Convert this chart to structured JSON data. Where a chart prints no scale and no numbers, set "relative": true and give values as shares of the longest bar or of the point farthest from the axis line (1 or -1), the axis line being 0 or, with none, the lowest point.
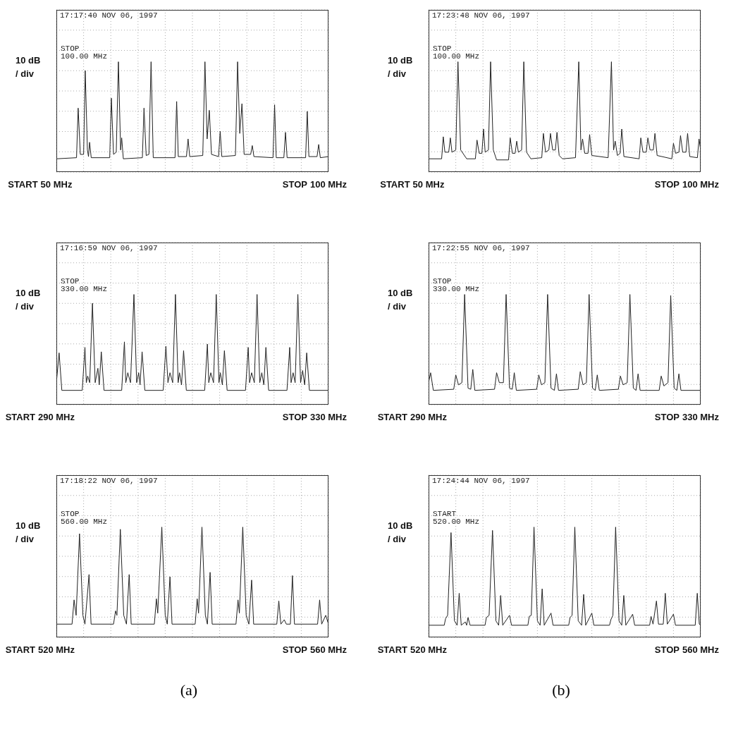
{
  "chart_data": [
    {
      "type": "line",
      "ylabel": "10 dB / div",
      "annotations": [
        "17:17:40 NOV 06, 1997",
        "STOP\n100.00 MHz",
        "START",
        "STOP"
      ],
      "relative": true,
      "grid": true,
      "color": "#222222",
      "xlim": [
        50,
        100
      ],
      "xticks": [
        {
          "value": 50,
          "label": "50 MHz"
        },
        {
          "value": 55,
          "label": null
        },
        {
          "value": 60,
          "label": null
        },
        {
          "value": 65,
          "label": null
        },
        {
          "value": 70,
          "label": null
        },
        {
          "value": 75,
          "label": null
        },
        {
          "value": 80,
          "label": null
        },
        {
          "value": 85,
          "label": null
        },
        {
          "value": 90,
          "label": null
        },
        {
          "value": 95,
          "label": null
        },
        {
          "value": 100,
          "label": "100 MHz"
        }
      ],
      "x": [
        50,
        53.7,
        54.0,
        54.4,
        55.0,
        55.3,
        55.7,
        55.9,
        56.1,
        56.4,
        59.8,
        60.1,
        60.5,
        61.0,
        61.4,
        61.8,
        62.0,
        62.3,
        65.8,
        66.1,
        66.5,
        67.0,
        67.4,
        67.8,
        71.8,
        72.1,
        72.4,
        73.9,
        74.2,
        74.5,
        76.9,
        77.3,
        77.7,
        78.1,
        78.5,
        79.8,
        80.1,
        80.4,
        82.9,
        83.3,
        83.7,
        84.1,
        84.5,
        85.7,
        86.0,
        86.3,
        89.8,
        90.1,
        90.4,
        91.8,
        92.1,
        92.4,
        95.8,
        96.1,
        96.4,
        97.9,
        98.2,
        98.5,
        100
      ],
      "values": [
        0.12,
        0.13,
        0.58,
        0.16,
        0.16,
        0.92,
        0.2,
        0.14,
        0.27,
        0.13,
        0.13,
        0.67,
        0.16,
        0.18,
        1.0,
        0.2,
        0.31,
        0.12,
        0.13,
        0.58,
        0.15,
        0.16,
        1.0,
        0.13,
        0.13,
        0.64,
        0.14,
        0.14,
        0.3,
        0.14,
        0.15,
        1.0,
        0.3,
        0.56,
        0.16,
        0.14,
        0.37,
        0.14,
        0.15,
        1.0,
        0.35,
        0.62,
        0.16,
        0.16,
        0.24,
        0.14,
        0.13,
        0.61,
        0.13,
        0.13,
        0.36,
        0.13,
        0.13,
        0.55,
        0.14,
        0.14,
        0.25,
        0.13,
        0.14
      ]
    },
    {
      "type": "line",
      "ylabel": "10 dB / div",
      "annotations": [
        "17:23:48 NOV 06, 1997",
        "STOP\n100.00 MHz",
        "START",
        "STOP"
      ],
      "relative": true,
      "grid": true,
      "color": "#222222",
      "xlim": [
        50,
        100
      ],
      "xticks": [
        {
          "value": 50,
          "label": "50 MHz"
        },
        {
          "value": 55,
          "label": null
        },
        {
          "value": 60,
          "label": null
        },
        {
          "value": 65,
          "label": null
        },
        {
          "value": 70,
          "label": null
        },
        {
          "value": 75,
          "label": null
        },
        {
          "value": 80,
          "label": null
        },
        {
          "value": 85,
          "label": null
        },
        {
          "value": 90,
          "label": null
        },
        {
          "value": 95,
          "label": null
        },
        {
          "value": 100,
          "label": "100 MHz"
        }
      ],
      "x": [
        50,
        52.4,
        52.7,
        53.0,
        53.7,
        54.0,
        54.3,
        55.0,
        55.4,
        55.9,
        57.0,
        58.6,
        58.9,
        59.3,
        59.8,
        60.1,
        60.4,
        61.0,
        61.4,
        61.9,
        62.5,
        64.7,
        65.0,
        65.4,
        65.9,
        66.2,
        66.5,
        67.1,
        67.5,
        68.0,
        68.8,
        70.8,
        71.1,
        71.5,
        72.1,
        72.4,
        72.8,
        73.3,
        73.6,
        74.0,
        74.6,
        77.0,
        77.6,
        78.0,
        78.3,
        78.7,
        79.3,
        79.6,
        80.0,
        83.0,
        83.6,
        84.0,
        84.3,
        84.7,
        85.2,
        85.5,
        85.9,
        88.7,
        89.0,
        89.4,
        90.0,
        90.3,
        90.7,
        91.3,
        91.6,
        92.0,
        94.7,
        95.0,
        95.4,
        96.0,
        96.3,
        96.7,
        97.3,
        97.6,
        98.0,
        99.4,
        99.7,
        100
      ],
      "values": [
        0.12,
        0.12,
        0.32,
        0.18,
        0.18,
        0.31,
        0.18,
        0.2,
        1.0,
        0.2,
        0.12,
        0.12,
        0.29,
        0.17,
        0.17,
        0.39,
        0.18,
        0.2,
        1.0,
        0.2,
        0.11,
        0.11,
        0.31,
        0.17,
        0.17,
        0.28,
        0.18,
        0.2,
        1.0,
        0.18,
        0.12,
        0.13,
        0.35,
        0.18,
        0.2,
        0.35,
        0.2,
        0.2,
        0.36,
        0.15,
        0.12,
        0.13,
        1.0,
        0.2,
        0.3,
        0.17,
        0.17,
        0.34,
        0.15,
        0.13,
        1.0,
        0.2,
        0.28,
        0.15,
        0.17,
        0.39,
        0.14,
        0.12,
        0.31,
        0.18,
        0.18,
        0.31,
        0.2,
        0.2,
        0.35,
        0.15,
        0.12,
        0.26,
        0.17,
        0.18,
        0.33,
        0.18,
        0.18,
        0.35,
        0.14,
        0.13,
        0.3,
        0.2
      ]
    },
    {
      "type": "line",
      "ylabel": "10 dB / div",
      "annotations": [
        "17:16:59 NOV 06, 1997",
        "STOP\n330.00 MHz",
        "START",
        "STOP"
      ],
      "relative": true,
      "grid": true,
      "color": "#222222",
      "xlim": [
        290,
        330
      ],
      "xticks": [
        {
          "value": 290,
          "label": "290 MHz"
        },
        {
          "value": 294,
          "label": null
        },
        {
          "value": 298,
          "label": null
        },
        {
          "value": 302,
          "label": null
        },
        {
          "value": 306,
          "label": null
        },
        {
          "value": 310,
          "label": null
        },
        {
          "value": 314,
          "label": null
        },
        {
          "value": 318,
          "label": null
        },
        {
          "value": 322,
          "label": null
        },
        {
          "value": 326,
          "label": null
        },
        {
          "value": 330,
          "label": "330 MHz"
        }
      ],
      "x": [
        290,
        290.4,
        290.8,
        293.8,
        294.2,
        294.4,
        294.6,
        294.9,
        295.3,
        295.7,
        296.1,
        296.3,
        296.6,
        297.0,
        299.6,
        300.0,
        300.2,
        300.5,
        300.9,
        301.4,
        301.8,
        302.1,
        302.3,
        302.6,
        303.0,
        305.7,
        306.1,
        306.4,
        306.7,
        307.1,
        307.5,
        307.9,
        308.1,
        308.4,
        308.7,
        309.1,
        311.8,
        312.2,
        312.4,
        312.7,
        313.1,
        313.5,
        313.9,
        314.1,
        314.4,
        314.7,
        315.1,
        317.8,
        318.2,
        318.4,
        318.7,
        319.1,
        319.5,
        319.9,
        320.2,
        320.5,
        320.8,
        321.2,
        323.9,
        324.3,
        324.5,
        324.8,
        325.1,
        325.5,
        325.9,
        326.2,
        326.5,
        326.8,
        327.2,
        330
      ],
      "values": [
        0.2,
        0.47,
        0.13,
        0.13,
        0.52,
        0.2,
        0.26,
        0.2,
        0.92,
        0.2,
        0.33,
        0.18,
        0.48,
        0.13,
        0.13,
        0.57,
        0.2,
        0.29,
        0.2,
        1.0,
        0.2,
        0.29,
        0.18,
        0.48,
        0.13,
        0.13,
        0.53,
        0.2,
        0.29,
        0.2,
        1.0,
        0.2,
        0.29,
        0.18,
        0.49,
        0.13,
        0.13,
        0.55,
        0.2,
        0.29,
        0.2,
        1.0,
        0.2,
        0.29,
        0.18,
        0.49,
        0.13,
        0.13,
        0.52,
        0.2,
        0.29,
        0.2,
        1.0,
        0.2,
        0.29,
        0.18,
        0.52,
        0.13,
        0.13,
        0.52,
        0.2,
        0.29,
        0.2,
        1.0,
        0.2,
        0.31,
        0.18,
        0.47,
        0.13,
        0.13
      ]
    },
    {
      "type": "line",
      "ylabel": "10 dB / div",
      "annotations": [
        "17:22:55 NOV 06, 1997",
        "STOP\n330.00 MHz",
        "START",
        "STOP"
      ],
      "relative": true,
      "grid": true,
      "color": "#222222",
      "xlim": [
        290,
        330
      ],
      "xticks": [
        {
          "value": 290,
          "label": "290 MHz"
        },
        {
          "value": 294,
          "label": null
        },
        {
          "value": 298,
          "label": null
        },
        {
          "value": 302,
          "label": null
        },
        {
          "value": 306,
          "label": null
        },
        {
          "value": 310,
          "label": null
        },
        {
          "value": 314,
          "label": null
        },
        {
          "value": 318,
          "label": null
        },
        {
          "value": 322,
          "label": null
        },
        {
          "value": 326,
          "label": null
        },
        {
          "value": 330,
          "label": "330 MHz"
        }
      ],
      "x": [
        290,
        290.3,
        290.7,
        293.7,
        294.0,
        294.4,
        294.9,
        295.3,
        295.8,
        296.2,
        296.5,
        296.8,
        299.7,
        300.0,
        300.4,
        301.0,
        301.4,
        301.9,
        302.3,
        302.6,
        302.9,
        305.9,
        306.2,
        306.6,
        307.1,
        307.5,
        308.0,
        308.5,
        308.8,
        309.1,
        312.0,
        312.3,
        312.7,
        313.2,
        313.6,
        314.1,
        314.5,
        314.8,
        315.1,
        317.9,
        318.2,
        318.6,
        319.2,
        319.6,
        320.1,
        320.5,
        320.8,
        321.1,
        323.9,
        324.2,
        324.6,
        325.2,
        325.6,
        326.1,
        326.5,
        326.8,
        327.1,
        330
      ],
      "values": [
        0.2,
        0.29,
        0.13,
        0.14,
        0.27,
        0.18,
        0.2,
        1.0,
        0.15,
        0.14,
        0.32,
        0.13,
        0.14,
        0.29,
        0.2,
        0.2,
        1.0,
        0.15,
        0.14,
        0.29,
        0.13,
        0.14,
        0.27,
        0.18,
        0.2,
        1.0,
        0.15,
        0.13,
        0.28,
        0.13,
        0.14,
        0.3,
        0.18,
        0.2,
        1.0,
        0.15,
        0.13,
        0.27,
        0.13,
        0.14,
        0.26,
        0.18,
        0.2,
        1.0,
        0.15,
        0.13,
        0.28,
        0.13,
        0.13,
        0.26,
        0.17,
        0.2,
        0.99,
        0.15,
        0.13,
        0.28,
        0.13,
        0.13
      ]
    },
    {
      "type": "line",
      "ylabel": "10 dB / div",
      "annotations": [
        "17:18:22 NOV 06, 1997",
        "STOP\n560.00 MHz",
        "START",
        "STOP",
        "(a)"
      ],
      "relative": true,
      "grid": true,
      "color": "#222222",
      "xlim": [
        520,
        560
      ],
      "xticks": [
        {
          "value": 520,
          "label": "520 MHz"
        },
        {
          "value": 524,
          "label": null
        },
        {
          "value": 528,
          "label": null
        },
        {
          "value": 532,
          "label": null
        },
        {
          "value": 536,
          "label": null
        },
        {
          "value": 540,
          "label": null
        },
        {
          "value": 544,
          "label": null
        },
        {
          "value": 548,
          "label": null
        },
        {
          "value": 552,
          "label": null
        },
        {
          "value": 556,
          "label": null
        },
        {
          "value": 560,
          "label": "560 MHz"
        }
      ],
      "x": [
        520,
        522.3,
        522.6,
        522.9,
        523.4,
        523.9,
        524.2,
        524.8,
        525.1,
        528.4,
        528.7,
        528.9,
        529.4,
        529.9,
        530.3,
        530.7,
        531.0,
        534.4,
        534.7,
        534.9,
        535.5,
        536.0,
        536.3,
        536.7,
        537.0,
        540.4,
        540.7,
        540.9,
        541.4,
        541.9,
        542.2,
        542.6,
        542.9,
        546.4,
        546.7,
        546.9,
        547.4,
        547.9,
        548.3,
        548.7,
        549.0,
        552.4,
        552.7,
        553.0,
        553.5,
        553.8,
        554.4,
        554.7,
        555.0,
        558.4,
        558.7,
        559.0,
        559.6,
        560
      ],
      "values": [
        0.12,
        0.12,
        0.34,
        0.2,
        0.94,
        0.2,
        0.12,
        0.57,
        0.12,
        0.12,
        0.24,
        0.2,
        0.98,
        0.2,
        0.12,
        0.57,
        0.12,
        0.12,
        0.35,
        0.22,
        1.0,
        0.2,
        0.12,
        0.55,
        0.12,
        0.12,
        0.35,
        0.22,
        1.0,
        0.2,
        0.12,
        0.59,
        0.12,
        0.12,
        0.34,
        0.22,
        1.0,
        0.2,
        0.12,
        0.52,
        0.12,
        0.12,
        0.33,
        0.12,
        0.16,
        0.12,
        0.12,
        0.56,
        0.12,
        0.12,
        0.34,
        0.12,
        0.2,
        0.12
      ]
    },
    {
      "type": "line",
      "ylabel": "10 dB / div",
      "annotations": [
        "17:24:44 NOV 06, 1997",
        "START\n520.00 MHz",
        "START",
        "STOP",
        "(b)"
      ],
      "relative": true,
      "grid": true,
      "color": "#222222",
      "xlim": [
        520,
        560
      ],
      "xticks": [
        {
          "value": 520,
          "label": "520 MHz"
        },
        {
          "value": 524,
          "label": null
        },
        {
          "value": 528,
          "label": null
        },
        {
          "value": 532,
          "label": null
        },
        {
          "value": 536,
          "label": null
        },
        {
          "value": 540,
          "label": null
        },
        {
          "value": 544,
          "label": null
        },
        {
          "value": 548,
          "label": null
        },
        {
          "value": 552,
          "label": null
        },
        {
          "value": 556,
          "label": null
        },
        {
          "value": 560,
          "label": "560 MHz"
        }
      ],
      "x": [
        520,
        522.3,
        522.5,
        522.8,
        523.3,
        523.8,
        524.2,
        524.5,
        524.8,
        525.4,
        525.6,
        525.8,
        526.1,
        528.3,
        528.5,
        528.9,
        529.4,
        529.9,
        530.3,
        530.6,
        530.9,
        531.9,
        532.2,
        534.6,
        534.8,
        535.1,
        535.5,
        536.0,
        536.4,
        536.7,
        537.0,
        538.0,
        538.3,
        540.6,
        540.8,
        541.1,
        541.5,
        542.0,
        542.5,
        542.8,
        543.1,
        544.0,
        544.3,
        546.6,
        546.8,
        547.1,
        547.5,
        548.0,
        548.4,
        548.7,
        549.0,
        550.0,
        550.3,
        552.5,
        552.7,
        553.0,
        553.5,
        553.8,
        554.5,
        554.8,
        555.1,
        556.0,
        556.3,
        559.2,
        559.5,
        559.8,
        560
      ],
      "values": [
        0.11,
        0.11,
        0.17,
        0.2,
        0.95,
        0.15,
        0.11,
        0.4,
        0.11,
        0.14,
        0.11,
        0.18,
        0.11,
        0.11,
        0.18,
        0.2,
        0.97,
        0.15,
        0.11,
        0.38,
        0.11,
        0.2,
        0.11,
        0.11,
        0.19,
        0.2,
        1.0,
        0.15,
        0.11,
        0.44,
        0.11,
        0.22,
        0.11,
        0.11,
        0.18,
        0.2,
        1.0,
        0.15,
        0.11,
        0.39,
        0.11,
        0.22,
        0.11,
        0.11,
        0.16,
        0.2,
        1.0,
        0.15,
        0.11,
        0.38,
        0.11,
        0.21,
        0.11,
        0.11,
        0.19,
        0.12,
        0.33,
        0.12,
        0.12,
        0.4,
        0.12,
        0.21,
        0.11,
        0.11,
        0.4,
        0.12,
        0.11
      ]
    }
  ]
}
